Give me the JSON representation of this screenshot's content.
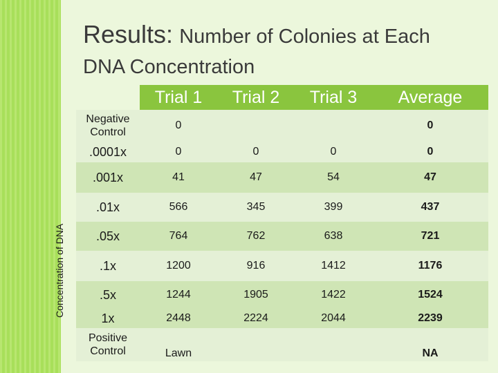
{
  "slide": {
    "title_lead": "Results:",
    "title_rest": "Number of Colonies at Each",
    "title_line2": "DNA Concentration",
    "y_axis_label": "Concentration of DNA"
  },
  "table": {
    "headers": [
      "Trial 1",
      "Trial 2",
      "Trial 3",
      "Average"
    ],
    "rows": [
      {
        "label": "Negative Control",
        "trial1": "0",
        "trial2": "",
        "trial3": "",
        "average": "0"
      },
      {
        "label": ".0001x",
        "trial1": "0",
        "trial2": "0",
        "trial3": "0",
        "average": "0"
      },
      {
        "label": ".001x",
        "trial1": "41",
        "trial2": "47",
        "trial3": "54",
        "average": "47"
      },
      {
        "label": ".01x",
        "trial1": "566",
        "trial2": "345",
        "trial3": "399",
        "average": "437"
      },
      {
        "label": ".05x",
        "trial1": "764",
        "trial2": "762",
        "trial3": "638",
        "average": "721"
      },
      {
        "label": ".1x",
        "trial1": "1200",
        "trial2": "916",
        "trial3": "1412",
        "average": "1176"
      },
      {
        "label": ".5x",
        "trial1": "1244",
        "trial2": "1905",
        "trial3": "1422",
        "average": "1524"
      },
      {
        "label": "1x",
        "trial1": "2448",
        "trial2": "2224",
        "trial3": "2044",
        "average": "2239"
      },
      {
        "label": "Positive Control",
        "trial1": "Lawn",
        "trial2": "",
        "trial3": "",
        "average": "NA"
      }
    ]
  },
  "colors": {
    "background": "#a4dd4f",
    "panel": "#ecf7dc",
    "header": "#8ac53e",
    "row_light": "#e4f0d6",
    "row_dark": "#cfe5b5"
  }
}
